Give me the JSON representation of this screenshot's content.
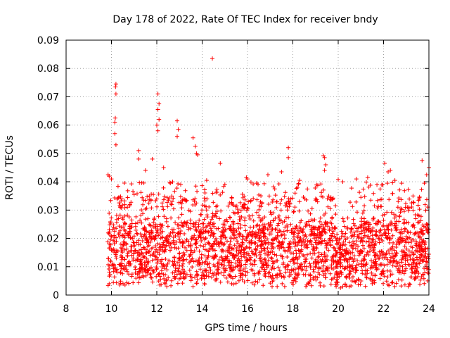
{
  "chart_data": {
    "type": "scatter",
    "title": "Day 178 of 2022, Rate Of TEC Index for receiver bndy",
    "xlabel": "GPS time / hours",
    "ylabel": "ROTI / TECUs",
    "xlim": [
      8,
      24
    ],
    "ylim": [
      0,
      0.09
    ],
    "x_ticks": [
      8,
      10,
      12,
      14,
      16,
      18,
      20,
      22,
      24
    ],
    "y_ticks": [
      0,
      0.01,
      0.02,
      0.03,
      0.04,
      0.05,
      0.06,
      0.07,
      0.08,
      0.09
    ],
    "x_tick_labels": [
      "8",
      "10",
      "12",
      "14",
      "16",
      "18",
      "20",
      "22",
      "24"
    ],
    "y_tick_labels": [
      "0",
      "0.01",
      "0.02",
      "0.03",
      "0.04",
      "0.05",
      "0.06",
      "0.07",
      "0.08",
      "0.09"
    ],
    "grid": true,
    "marker": "plus",
    "color": "#ff0000",
    "time_range": [
      9.8,
      24
    ],
    "typical_band": [
      0.005,
      0.025
    ],
    "series": [
      {
        "name": "ROTI",
        "points": [
          [
            14.45,
            0.0835
          ],
          [
            10.2,
            0.0745
          ],
          [
            10.18,
            0.0735
          ],
          [
            10.2,
            0.071
          ],
          [
            10.17,
            0.0625
          ],
          [
            10.15,
            0.061
          ],
          [
            10.15,
            0.057
          ],
          [
            10.2,
            0.053
          ],
          [
            12.05,
            0.071
          ],
          [
            12.1,
            0.0675
          ],
          [
            12.05,
            0.0655
          ],
          [
            12.1,
            0.062
          ],
          [
            12.0,
            0.06
          ],
          [
            12.05,
            0.058
          ],
          [
            12.9,
            0.0615
          ],
          [
            12.95,
            0.0585
          ],
          [
            12.9,
            0.056
          ],
          [
            13.6,
            0.0555
          ],
          [
            13.7,
            0.0525
          ],
          [
            13.75,
            0.05
          ],
          [
            13.8,
            0.0495
          ],
          [
            11.2,
            0.051
          ],
          [
            11.2,
            0.048
          ],
          [
            11.8,
            0.048
          ],
          [
            12.3,
            0.045
          ],
          [
            14.8,
            0.0465
          ],
          [
            17.8,
            0.052
          ],
          [
            17.8,
            0.0485
          ],
          [
            19.35,
            0.0492
          ],
          [
            19.4,
            0.0485
          ],
          [
            19.45,
            0.046
          ],
          [
            19.4,
            0.044
          ],
          [
            23.7,
            0.0475
          ],
          [
            22.05,
            0.0465
          ],
          [
            24.0,
            0.045
          ],
          [
            23.9,
            0.0425
          ],
          [
            9.85,
            0.0425
          ],
          [
            9.9,
            0.042
          ],
          [
            10.0,
            0.041
          ],
          [
            15.95,
            0.0415
          ],
          [
            16.0,
            0.041
          ],
          [
            16.9,
            0.0425
          ],
          [
            17.5,
            0.0435
          ],
          [
            18.3,
            0.0405
          ],
          [
            20.0,
            0.0408
          ],
          [
            20.2,
            0.04
          ],
          [
            20.8,
            0.041
          ],
          [
            21.3,
            0.0415
          ],
          [
            22.2,
            0.0435
          ],
          [
            22.3,
            0.044
          ],
          [
            22.5,
            0.0405
          ],
          [
            22.8,
            0.0395
          ],
          [
            10.7,
            0.031
          ],
          [
            11.0,
            0.0355
          ],
          [
            11.5,
            0.044
          ],
          [
            12.6,
            0.0395
          ],
          [
            14.2,
            0.0405
          ],
          [
            15.0,
            0.039
          ],
          [
            16.4,
            0.0395
          ],
          [
            17.2,
            0.0375
          ],
          [
            18.1,
            0.036
          ],
          [
            19.0,
            0.0335
          ],
          [
            21.0,
            0.0345
          ],
          [
            21.6,
            0.0315
          ],
          [
            23.3,
            0.035
          ],
          [
            23.8,
            0.0395
          ],
          [
            9.9,
            0.004
          ],
          [
            10.6,
            0.0035
          ],
          [
            14.1,
            0.004
          ],
          [
            15.3,
            0.004
          ],
          [
            17.0,
            0.0042
          ],
          [
            18.7,
            0.004
          ],
          [
            20.1,
            0.0025
          ],
          [
            20.2,
            0.003
          ],
          [
            20.35,
            0.0032
          ],
          [
            21.5,
            0.004
          ],
          [
            22.4,
            0.0045
          ],
          [
            23.6,
            0.0038
          ],
          [
            23.95,
            0.005
          ]
        ]
      }
    ]
  }
}
